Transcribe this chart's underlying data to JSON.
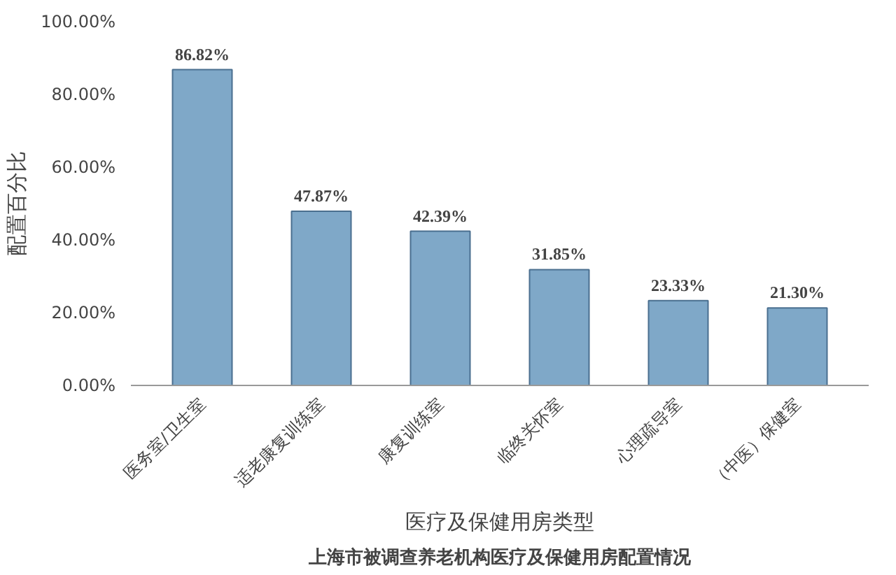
{
  "chart_data": {
    "type": "bar",
    "title": "上海市被调查养老机构医疗及保健用房配置情况",
    "xlabel": "医疗及保健用房类型",
    "ylabel": "配置百分比",
    "categories": [
      "医务室/卫生室",
      "适老康复训练室",
      "康复训练室",
      "临终关怀室",
      "心理疏导室",
      "（中医）保健室"
    ],
    "values": [
      86.82,
      47.87,
      42.39,
      31.85,
      23.33,
      21.3
    ],
    "value_labels": [
      "86.82%",
      "47.87%",
      "42.39%",
      "31.85%",
      "23.33%",
      "21.30%"
    ],
    "color": "#7fa8c8",
    "ylim": [
      0,
      100
    ],
    "yticks": [
      {
        "value": 0,
        "label": "0.00%"
      },
      {
        "value": 20,
        "label": "20.00%"
      },
      {
        "value": 40,
        "label": "40.00%"
      },
      {
        "value": 60,
        "label": "60.00%"
      },
      {
        "value": 80,
        "label": "80.00%"
      },
      {
        "value": 100,
        "label": "100.00%"
      }
    ],
    "grid": false
  }
}
